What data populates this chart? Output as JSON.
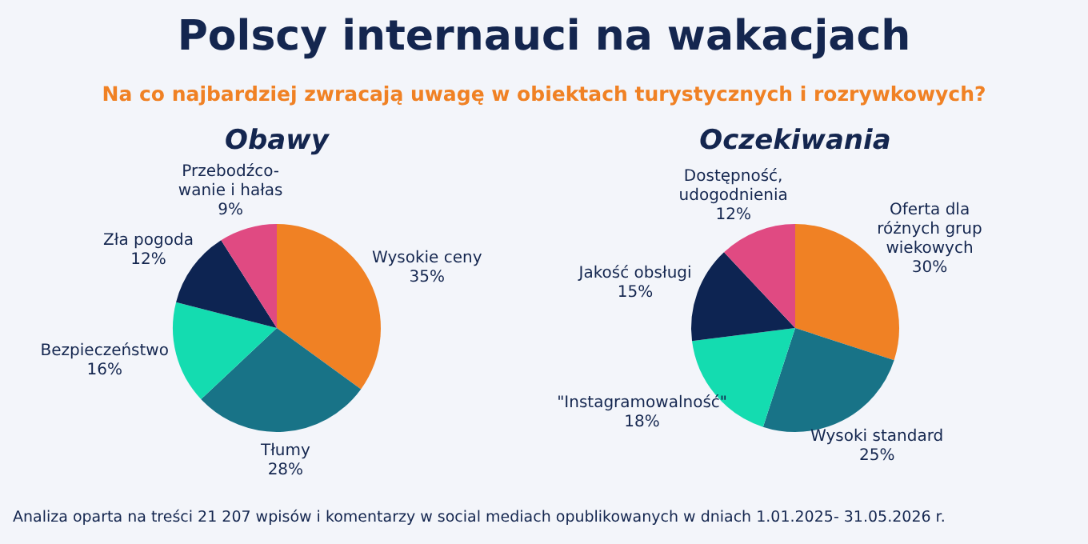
{
  "chart_data": [
    {
      "type": "other",
      "title": "Polscy internauci na wakacjach",
      "subtitle": "Na co najbardziej zwracają uwagę w obiektach turystycznych i rozrywkowych?",
      "annotations": [
        "Analiza oparta na treści 21 207 wpisów i komentarzy w social mediach opublikowanych w dniach 1.01.2025- 31.05.2026 r."
      ]
    },
    {
      "type": "pie",
      "title": "Obawy",
      "categories": [
        "Wysokie ceny",
        "Tłumy",
        "Bezpieczeństwo",
        "Zła pogoda",
        "Przebodźco-\nwanie i hałas"
      ],
      "values": [
        35,
        28,
        16,
        12,
        9
      ],
      "value_labels": [
        "35%",
        "28%",
        "16%",
        "12%",
        "9%"
      ],
      "colors": [
        "#f08124",
        "#187387",
        "#14dcb0",
        "#0d2452",
        "#e04a82"
      ]
    },
    {
      "type": "pie",
      "title": "Oczekiwania",
      "categories": [
        "Oferta dla\nróżnych grup\nwiekowych",
        "Wysoki standard",
        "\"Instagramowalność\"",
        "Jakość obsługi",
        "Dostępność,\nudogodnienia"
      ],
      "values": [
        30,
        25,
        18,
        15,
        12
      ],
      "value_labels": [
        "30%",
        "25%",
        "18%",
        "15%",
        "12%"
      ],
      "colors": [
        "#f08124",
        "#187387",
        "#14dcb0",
        "#0d2452",
        "#e04a82"
      ]
    }
  ]
}
